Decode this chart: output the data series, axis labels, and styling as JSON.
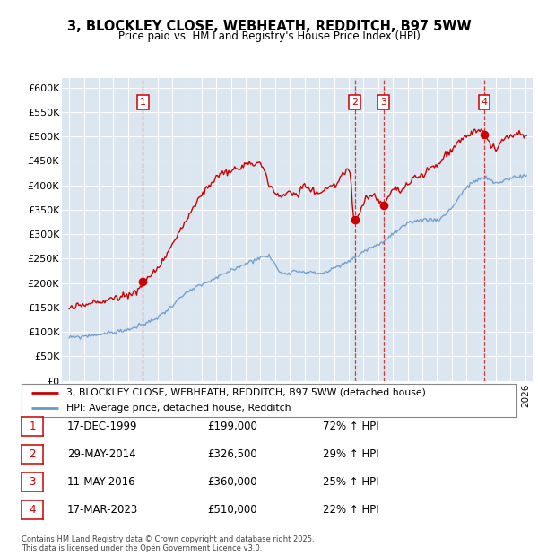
{
  "title": "3, BLOCKLEY CLOSE, WEBHEATH, REDDITCH, B97 5WW",
  "subtitle": "Price paid vs. HM Land Registry's House Price Index (HPI)",
  "background_color": "#ffffff",
  "plot_bg_color": "#dce6f1",
  "grid_color": "#ffffff",
  "red_line_color": "#cc0000",
  "blue_line_color": "#6699cc",
  "transactions": [
    {
      "num": 1,
      "date": "17-DEC-1999",
      "price": 199000,
      "pct": "72%",
      "dir": "↑",
      "year_float": 2000.0
    },
    {
      "num": 2,
      "date": "29-MAY-2014",
      "price": 326500,
      "pct": "29%",
      "dir": "↑",
      "year_float": 2014.41
    },
    {
      "num": 3,
      "date": "11-MAY-2016",
      "price": 360000,
      "pct": "25%",
      "dir": "↑",
      "year_float": 2016.36
    },
    {
      "num": 4,
      "date": "17-MAR-2023",
      "price": 510000,
      "pct": "22%",
      "dir": "↑",
      "year_float": 2023.21
    }
  ],
  "legend_label_red": "3, BLOCKLEY CLOSE, WEBHEATH, REDDITCH, B97 5WW (detached house)",
  "legend_label_blue": "HPI: Average price, detached house, Redditch",
  "footer": "Contains HM Land Registry data © Crown copyright and database right 2025.\nThis data is licensed under the Open Government Licence v3.0.",
  "ylim": [
    0,
    620000
  ],
  "yticks": [
    0,
    50000,
    100000,
    150000,
    200000,
    250000,
    300000,
    350000,
    400000,
    450000,
    500000,
    550000,
    600000
  ],
  "xmin": 1994.5,
  "xmax": 2026.5
}
